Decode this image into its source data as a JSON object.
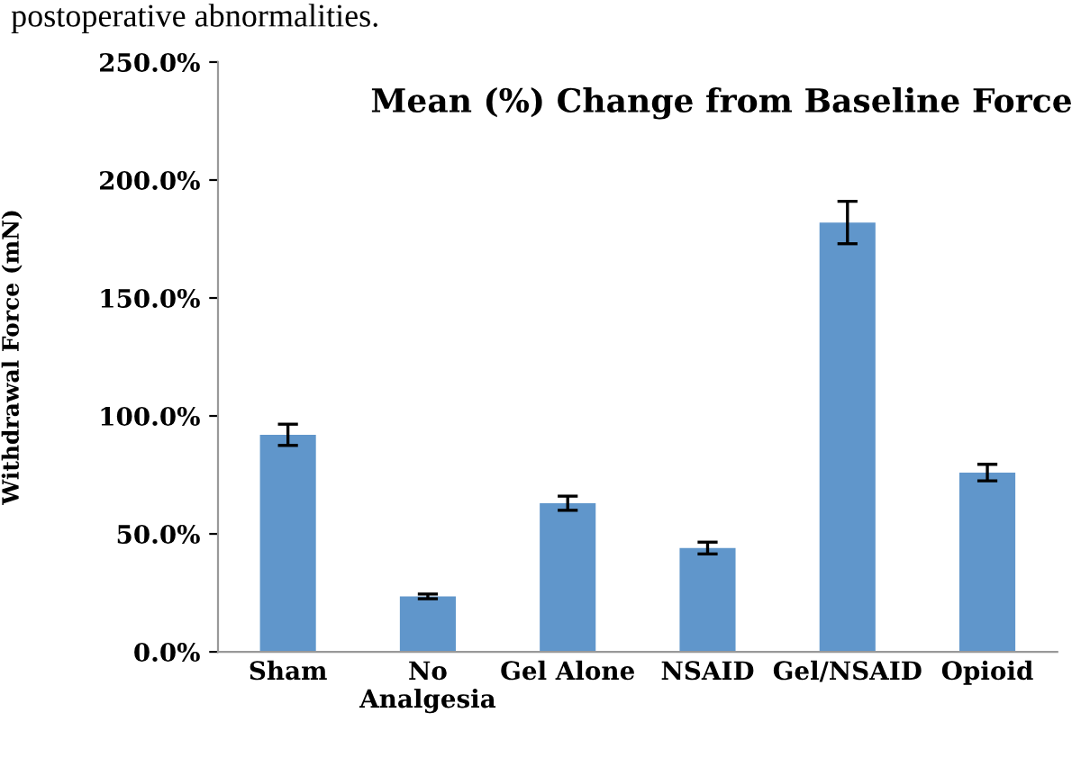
{
  "chart_data": {
    "type": "bar",
    "title": "Mean (%) Change from Baseline Force",
    "ylabel": "Withdrawal Force (mN)",
    "annotations": [
      "postoperative abnormalities."
    ],
    "categories": [
      "Sham",
      "No\nAnalgesia",
      "Gel Alone",
      "NSAID",
      "Gel/NSAID",
      "Opioid"
    ],
    "values": [
      92,
      23.5,
      63,
      44,
      182,
      76
    ],
    "errors": [
      4.5,
      1,
      3,
      2.5,
      9,
      3.5
    ],
    "color": "#6096cb",
    "ylim": [
      0,
      250
    ],
    "yticks": [
      {
        "value": 0,
        "label": "0.0%"
      },
      {
        "value": 50,
        "label": "50.0%"
      },
      {
        "value": 100,
        "label": "100.0%"
      },
      {
        "value": 150,
        "label": "150.0%"
      },
      {
        "value": 200,
        "label": "200.0%"
      },
      {
        "value": 250,
        "label": "250.0%"
      }
    ],
    "grid": false
  }
}
